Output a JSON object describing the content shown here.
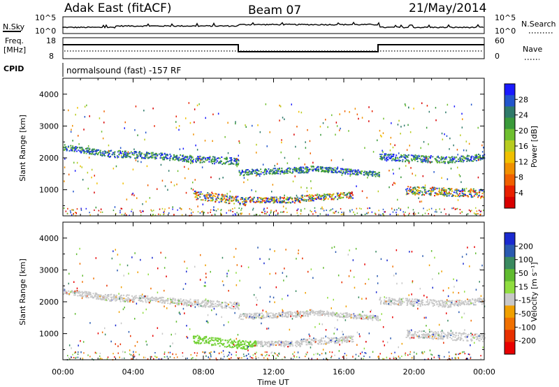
{
  "header": {
    "station": "Adak East (fitACF)",
    "beam": "Beam 07",
    "date": "21/May/2014"
  },
  "top_panels": {
    "nsky_label": "N.Sky",
    "nsearch_label": "N.Search",
    "nsky_ticks": [
      "10^5",
      "10^0"
    ],
    "nsky_right_ticks": [
      "10^5",
      "10^0"
    ],
    "freq_label": "Freq.",
    "freq_unit": "[MHz]",
    "freq_ticks": [
      "18",
      "8"
    ],
    "nave_label": "Nave",
    "nave_ticks": [
      "60",
      "0"
    ],
    "cpid_label": "CPID",
    "cpid_text": "normalsound (fast) -157 RF"
  },
  "chart_data": [
    {
      "type": "heatmap",
      "name": "power-panel",
      "ylabel": "Slant Range [km]",
      "ylim": [
        180,
        4500
      ],
      "yticks": [
        1000,
        2000,
        3000,
        4000
      ],
      "xlim": [
        0,
        24
      ],
      "colorbar": {
        "label": "Power [dB]",
        "ticks": [
          "4",
          "8",
          "12",
          "16",
          "20",
          "24",
          "28"
        ],
        "colors": [
          "#1a1aff",
          "#2255cc",
          "#2f7a6a",
          "#3a9a3a",
          "#6fbf30",
          "#b8cc20",
          "#f0c000",
          "#f09000",
          "#f06000",
          "#e82000",
          "#d80000"
        ]
      },
      "scatter_bands": [
        {
          "t0": 0.0,
          "t1": 2.5,
          "r0": 2350,
          "r1": 2150,
          "w": 180
        },
        {
          "t0": 2.5,
          "t1": 5.0,
          "r0": 2150,
          "r1": 2100,
          "w": 220
        },
        {
          "t0": 5.0,
          "t1": 7.0,
          "r0": 2100,
          "r1": 2000,
          "w": 200
        },
        {
          "t0": 7.0,
          "t1": 10.0,
          "r0": 2000,
          "r1": 1900,
          "w": 220
        },
        {
          "t0": 10.0,
          "t1": 14.0,
          "r0": 1550,
          "r1": 1650,
          "w": 180
        },
        {
          "t0": 14.0,
          "t1": 18.0,
          "r0": 1700,
          "r1": 1500,
          "w": 160
        },
        {
          "t0": 18.0,
          "t1": 22.0,
          "r0": 2050,
          "r1": 1950,
          "w": 220
        },
        {
          "t0": 22.0,
          "t1": 24.0,
          "r0": 1950,
          "r1": 2050,
          "w": 200
        },
        {
          "t0": 7.4,
          "t1": 10.5,
          "r0": 850,
          "r1": 650,
          "w": 260
        },
        {
          "t0": 10.5,
          "t1": 13.5,
          "r0": 700,
          "r1": 700,
          "w": 180
        },
        {
          "t0": 13.5,
          "t1": 16.5,
          "r0": 750,
          "r1": 850,
          "w": 200
        },
        {
          "t0": 19.5,
          "t1": 24.0,
          "r0": 1000,
          "r1": 900,
          "w": 260
        }
      ]
    },
    {
      "type": "heatmap",
      "name": "velocity-panel",
      "ylabel": "Slant Range [km]",
      "ylim": [
        180,
        4500
      ],
      "yticks": [
        1000,
        2000,
        3000,
        4000
      ],
      "xlim": [
        0,
        24
      ],
      "colorbar": {
        "label": "Velocity [m s⁻¹]",
        "ticks": [
          "200",
          "100",
          "50",
          "15",
          "-15",
          "-50",
          "-100",
          "-200"
        ],
        "colors": [
          "#1a2ad0",
          "#2a5ab0",
          "#3a8a60",
          "#60bb30",
          "#90dd40",
          "#c8c8c8",
          "#f0a000",
          "#f07000",
          "#e83000",
          "#e80000"
        ]
      }
    }
  ],
  "x_axis": {
    "label": "Time UT",
    "ticks": [
      "00:00",
      "04:00",
      "08:00",
      "12:00",
      "16:00",
      "20:00",
      "00:00"
    ]
  }
}
